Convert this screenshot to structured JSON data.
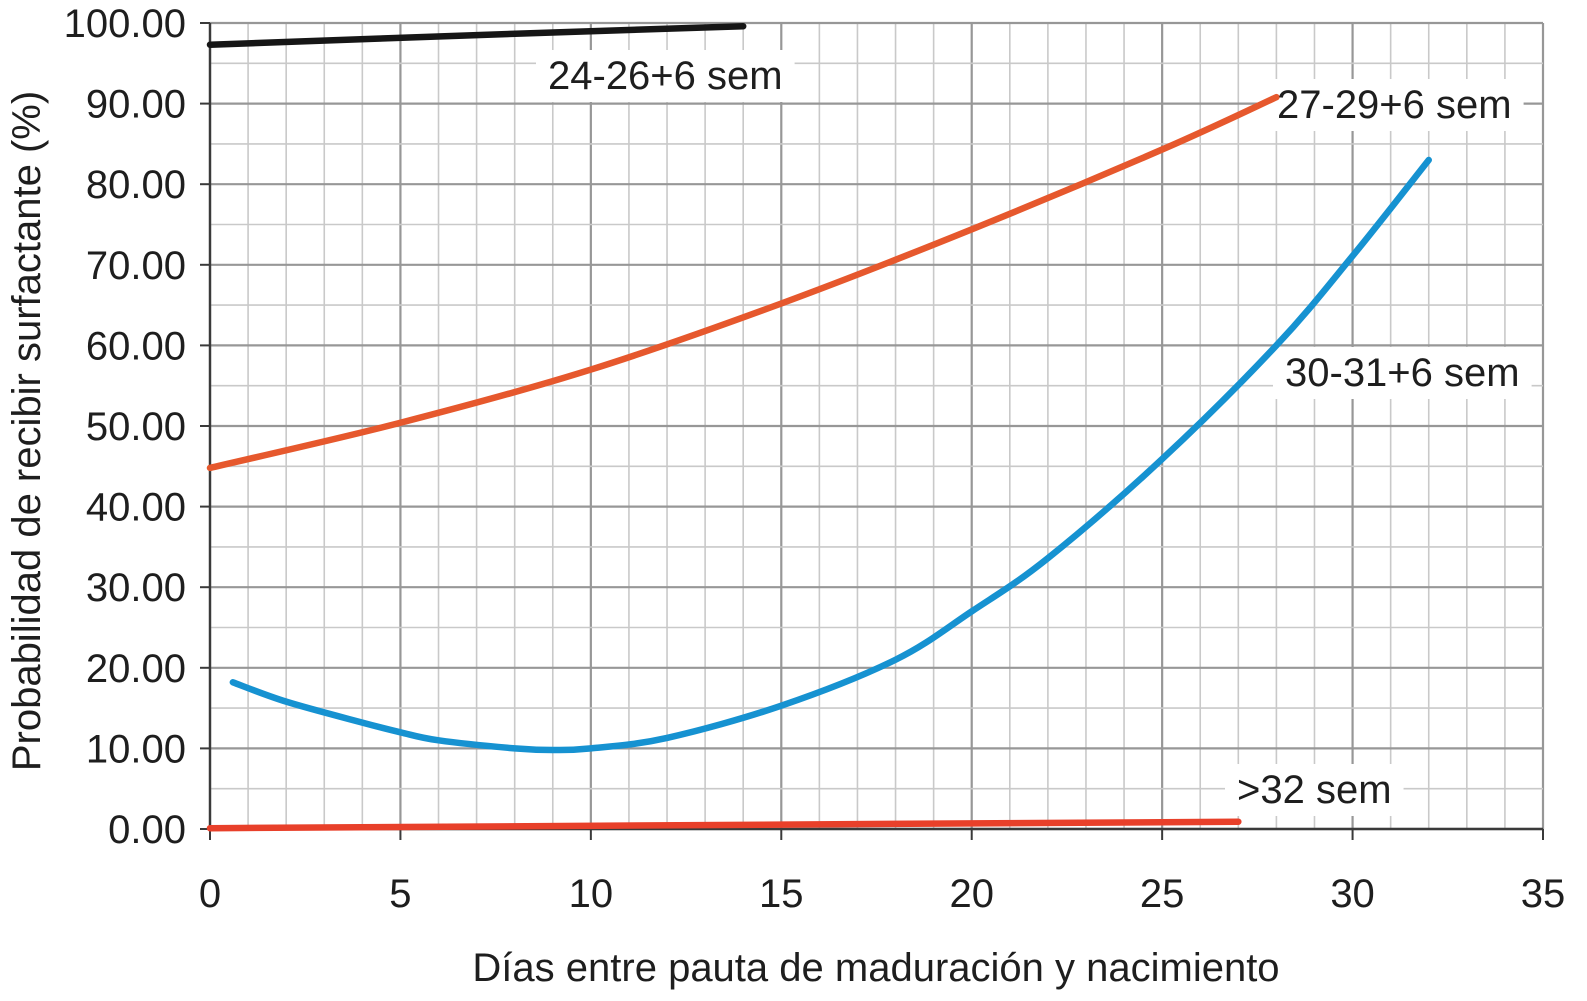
{
  "chart_data": {
    "type": "line",
    "xlabel": "Días entre pauta de maduración y nacimiento",
    "ylabel": "Probabilidad de recibir surfactante (%)",
    "xlim": [
      0,
      35
    ],
    "ylim": [
      0,
      100
    ],
    "x_ticks": [
      "0",
      "5",
      "10",
      "15",
      "20",
      "25",
      "30",
      "35"
    ],
    "y_ticks": [
      "0.00",
      "10.00",
      "20.00",
      "30.00",
      "40.00",
      "50.00",
      "60.00",
      "70.00",
      "80.00",
      "90.00",
      "100.00"
    ],
    "grid": true,
    "series": [
      {
        "name": "24-26+6 sem",
        "color": "#161616",
        "x": [
          0,
          7,
          14
        ],
        "y": [
          97.3,
          98.5,
          99.6
        ]
      },
      {
        "name": "27-29+6 sem",
        "color": "#e6582d",
        "x": [
          0,
          5,
          10,
          15,
          20,
          25,
          28
        ],
        "y": [
          44.8,
          50.4,
          57.0,
          65.2,
          74.4,
          84.3,
          90.8
        ]
      },
      {
        "name": "30-31+6 sem",
        "color": "#1692d1",
        "x": [
          0.6,
          2,
          4,
          5,
          6,
          8,
          9,
          10,
          12,
          15,
          18,
          20,
          22,
          25,
          28,
          30,
          32
        ],
        "y": [
          18.2,
          15.8,
          13.2,
          12.0,
          11.0,
          10.0,
          9.8,
          10.0,
          11.3,
          15.3,
          21.0,
          27.0,
          33.6,
          45.9,
          60.0,
          71.1,
          83.0
        ]
      },
      {
        "name": ">32 sem",
        "color": "#e8402a",
        "x": [
          0,
          27
        ],
        "y": [
          0.1,
          0.9
        ]
      }
    ]
  }
}
